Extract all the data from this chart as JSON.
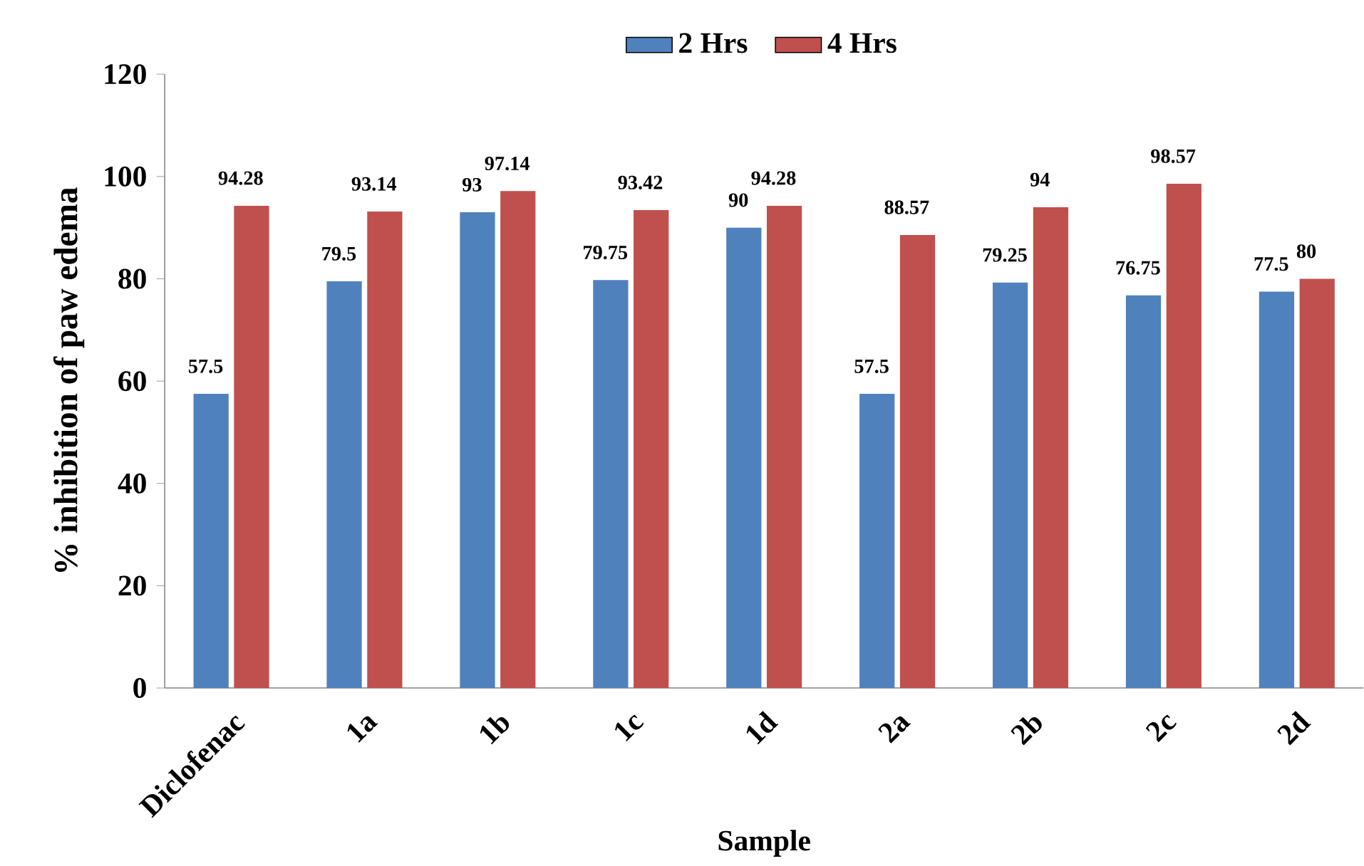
{
  "chart_data": {
    "type": "bar",
    "xlabel": "Sample",
    "ylabel": "% inhibition of paw edema",
    "categories": [
      "Diclofenac",
      "1a",
      "1b",
      "1c",
      "1d",
      "2a",
      "2b",
      "2c",
      "2d"
    ],
    "series": [
      {
        "name": "2 Hrs",
        "color": "#4f81bd",
        "values": [
          57.5,
          79.5,
          93,
          79.75,
          90,
          57.5,
          79.25,
          76.75,
          77.5
        ]
      },
      {
        "name": "4 Hrs",
        "color": "#c0504d",
        "values": [
          94.28,
          93.14,
          97.14,
          93.42,
          94.28,
          88.57,
          94,
          98.57,
          80
        ]
      }
    ],
    "ylim": [
      0,
      120
    ],
    "yticks": [
      0,
      20,
      40,
      60,
      80,
      100,
      120
    ],
    "data_labels": true,
    "legend": "top",
    "grid": false
  }
}
